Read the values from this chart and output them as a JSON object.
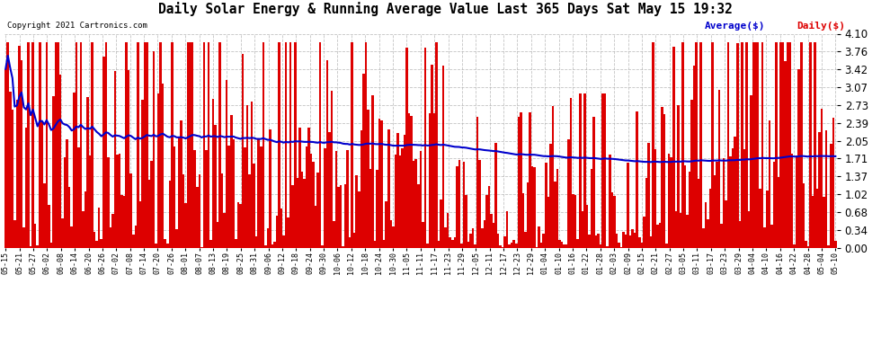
{
  "title": "Daily Solar Energy & Running Average Value Last 365 Days Sat May 15 19:32",
  "copyright": "Copyright 2021 Cartronics.com",
  "bar_color": "#dd0000",
  "avg_line_color": "#0000cc",
  "background_color": "#ffffff",
  "plot_bg_color": "#ffffff",
  "grid_color": "#aaaaaa",
  "ylim": [
    0.0,
    4.1
  ],
  "yticks": [
    0.0,
    0.34,
    0.68,
    1.02,
    1.37,
    1.71,
    2.05,
    2.39,
    2.73,
    3.07,
    3.42,
    3.76,
    4.1
  ],
  "legend_avg_label": "Average($)",
  "legend_daily_label": "Daily($)",
  "avg_line_color_hex": "#0000cc",
  "daily_color_hex": "#dd0000",
  "x_labels": [
    "05-15",
    "05-21",
    "05-27",
    "06-02",
    "06-08",
    "06-14",
    "06-20",
    "06-26",
    "07-02",
    "07-08",
    "07-14",
    "07-20",
    "07-26",
    "08-01",
    "08-07",
    "08-13",
    "08-19",
    "08-25",
    "08-31",
    "09-06",
    "09-12",
    "09-18",
    "09-24",
    "09-30",
    "10-06",
    "10-12",
    "10-18",
    "10-24",
    "10-30",
    "11-05",
    "11-11",
    "11-17",
    "11-23",
    "11-29",
    "12-05",
    "12-11",
    "12-17",
    "12-23",
    "12-29",
    "01-04",
    "01-10",
    "01-16",
    "01-22",
    "01-28",
    "02-03",
    "02-09",
    "02-15",
    "02-21",
    "02-27",
    "03-05",
    "03-11",
    "03-17",
    "03-23",
    "03-29",
    "04-04",
    "04-10",
    "04-16",
    "04-22",
    "04-28",
    "05-04",
    "05-10"
  ]
}
